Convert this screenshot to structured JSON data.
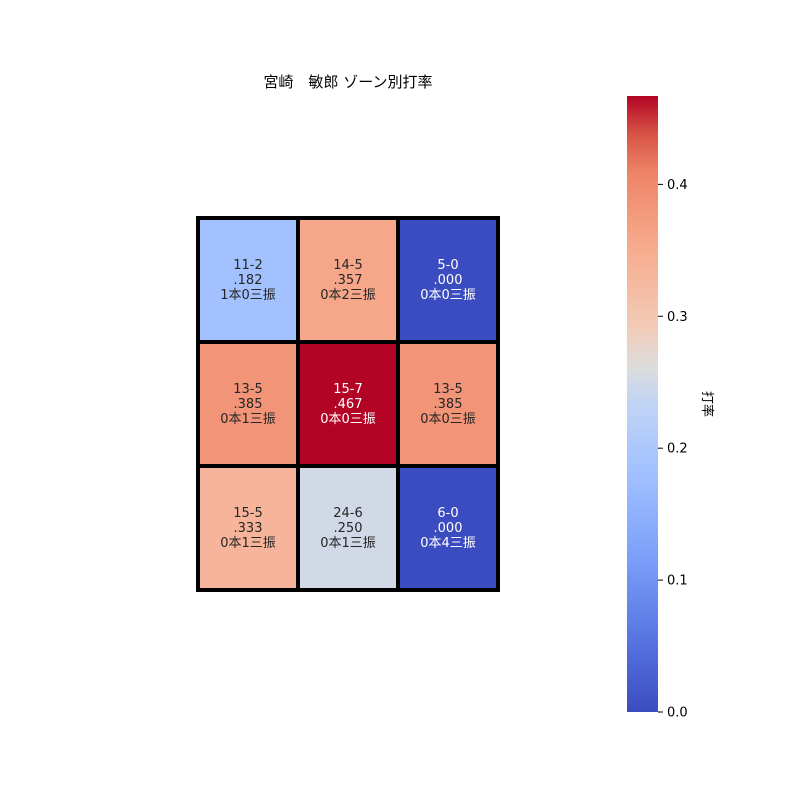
{
  "chart_data": {
    "type": "heatmap",
    "title": "宮崎　敏郎 ゾーン別打率",
    "rows": 3,
    "cols": 3,
    "cells": [
      [
        {
          "record": "11-2",
          "avg": 0.182,
          "avg_label": ".182",
          "detail": "1本0三振"
        },
        {
          "record": "14-5",
          "avg": 0.357,
          "avg_label": ".357",
          "detail": "0本2三振"
        },
        {
          "record": "5-0",
          "avg": 0.0,
          "avg_label": ".000",
          "detail": "0本0三振"
        }
      ],
      [
        {
          "record": "13-5",
          "avg": 0.385,
          "avg_label": ".385",
          "detail": "0本1三振"
        },
        {
          "record": "15-7",
          "avg": 0.467,
          "avg_label": ".467",
          "detail": "0本0三振"
        },
        {
          "record": "13-5",
          "avg": 0.385,
          "avg_label": ".385",
          "detail": "0本0三振"
        }
      ],
      [
        {
          "record": "15-5",
          "avg": 0.333,
          "avg_label": ".333",
          "detail": "0本1三振"
        },
        {
          "record": "24-6",
          "avg": 0.25,
          "avg_label": ".250",
          "detail": "0本1三振"
        },
        {
          "record": "6-0",
          "avg": 0.0,
          "avg_label": ".000",
          "detail": "0本4三振"
        }
      ]
    ],
    "colorbar": {
      "label": "打率",
      "vmin": 0.0,
      "vmax": 0.467,
      "ticks": [
        0.0,
        0.1,
        0.2,
        0.3,
        0.4
      ],
      "tick_labels": [
        "0.0",
        "0.1",
        "0.2",
        "0.3",
        "0.4"
      ],
      "colormap": "coolwarm",
      "color_low": "#3b4cc0",
      "color_mid": "#dddcdc",
      "color_high": "#b40426"
    },
    "grid_line_color": "#000000"
  }
}
